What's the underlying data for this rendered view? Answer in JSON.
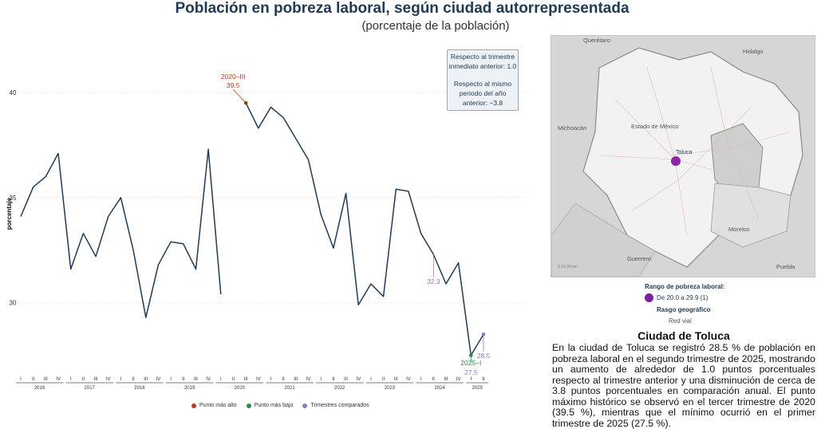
{
  "header": {
    "title": "Población en pobreza laboral, según ciudad autorrepresentada",
    "subtitle": "(porcentaje de la población)"
  },
  "note": {
    "line1": "Respecto al trimestre",
    "line2": "inmediato anterior: 1.0",
    "line3": "Respecto al mismo",
    "line4": "periodo del año",
    "line5": "anterior: −3.8"
  },
  "chart_data": {
    "type": "line",
    "ylabel": "porcentaje",
    "xlabel": "",
    "ylim": [
      26.5,
      42.5
    ],
    "yticks": [
      30,
      35,
      40
    ],
    "quarter_labels": [
      "I",
      "II",
      "III",
      "IV"
    ],
    "years": [
      "2016",
      "2017",
      "2018",
      "2019",
      "2020",
      "2021",
      "2022",
      "2023",
      "2024",
      "2025"
    ],
    "grid": true,
    "series": [
      {
        "values": [
          34.1,
          35.5,
          36.0,
          37.1,
          31.6,
          33.3,
          32.2,
          34.1,
          35.0,
          32.5,
          29.3,
          31.8,
          32.9,
          32.8,
          31.6,
          37.3,
          30.4,
          null,
          39.5,
          38.3,
          39.3,
          38.8,
          37.8,
          36.8,
          34.2,
          32.6,
          35.2,
          29.9,
          30.9,
          30.3,
          35.4,
          35.3,
          33.3,
          32.3,
          30.9,
          31.9,
          27.5,
          28.5
        ],
        "color": "#1f3b57"
      }
    ],
    "annotations": {
      "max": {
        "label": "2020–III",
        "value_label": "39.5",
        "index": 18,
        "value": 39.5
      },
      "min": {
        "label": "2025–I",
        "value_label": "27.5",
        "index": 36,
        "value": 27.5
      },
      "compared_prev_year": {
        "value_label": "32.3",
        "index": 33,
        "value": 32.3
      },
      "compared_current": {
        "value_label": "28.5",
        "index": 37,
        "value": 28.5
      }
    },
    "legend": [
      {
        "label": "Punto más alto",
        "color": "#c0391b"
      },
      {
        "label": "Punto más bajo",
        "color": "#2e8b57"
      },
      {
        "label": "Trimestres comparados",
        "color": "#8e7cc3"
      }
    ],
    "legend_position": "bottom"
  },
  "map": {
    "labels": {
      "queretaro": "Querétaro",
      "hidalgo": "Hidalgo",
      "michoacan": "Michoacán",
      "estado": "Estado de México",
      "toluca": "Toluca",
      "morelos": "Morelos",
      "guerrero": "Guerrero",
      "puebla": "Puebla"
    },
    "scale": "0   10   20 km"
  },
  "map_legend": {
    "range_title": "Rango de pobreza laboral:",
    "range_item": "De 20.0 a 29.9  (1)",
    "range_color": "#7b1fa2",
    "geo_title": "Rasgo geográfico",
    "geo_item": "Red vial"
  },
  "city": {
    "title": "Ciudad de Toluca",
    "text": "En la ciudad de Toluca se registró 28.5 % de población en pobreza laboral en el segundo trimestre de 2025, mostrando un aumento de alrededor de 1.0 puntos porcentuales respecto al trimestre anterior y una disminución de cerca de 3.8 puntos porcentuales en comparación anual. El punto máximo histórico se observó en el tercer trimestre de 2020 (39.5 %), mientras que el mínimo ocurrió en el primer trimestre de 2025 (27.5 %)."
  }
}
